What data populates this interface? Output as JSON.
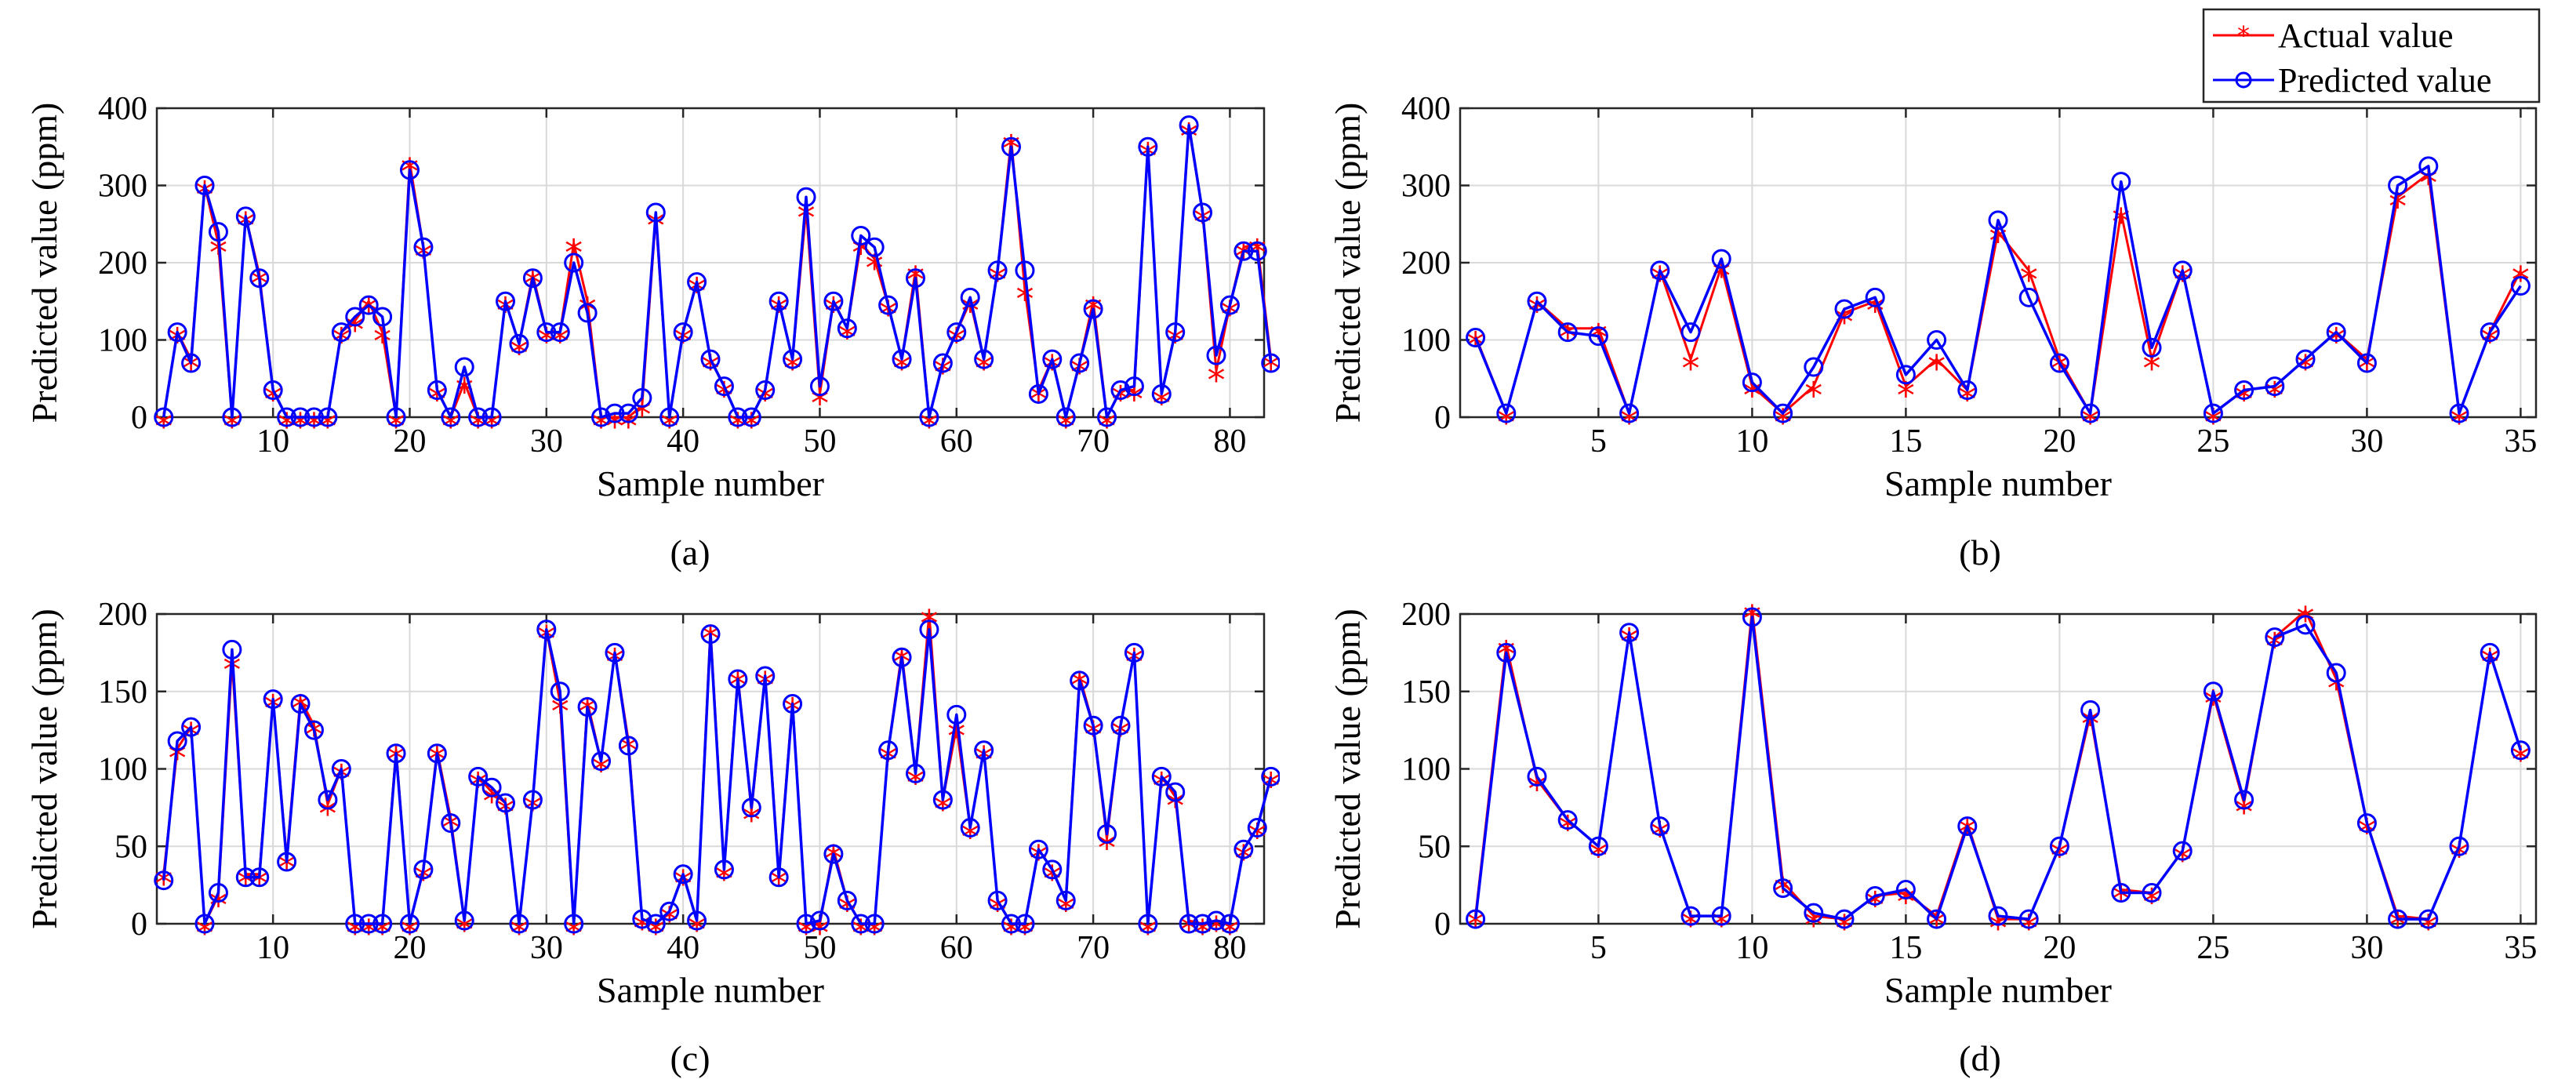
{
  "colors": {
    "actual": "#ff0000",
    "predicted": "#0000ff"
  },
  "legend": {
    "actual_label": "Actual value",
    "predicted_label": "Predicted value"
  },
  "chart_data": [
    {
      "panel": "(a)",
      "type": "line",
      "title": "",
      "xlabel": "Sample number",
      "ylabel": "Predicted value (ppm)",
      "xlim": [
        1.5,
        82.5
      ],
      "ylim": [
        0,
        400
      ],
      "xticks": [
        10,
        20,
        30,
        40,
        50,
        60,
        70,
        80
      ],
      "yticks": [
        0,
        100,
        200,
        300,
        400
      ],
      "grid": true,
      "legend_location": "",
      "x_start": 2,
      "series": [
        {
          "name": "Actual value",
          "values": [
            0,
            110,
            75,
            300,
            225,
            0,
            260,
            185,
            35,
            0,
            0,
            0,
            0,
            110,
            125,
            150,
            110,
            0,
            330,
            220,
            35,
            0,
            45,
            0,
            0,
            150,
            95,
            185,
            110,
            110,
            225,
            150,
            0,
            0,
            0,
            15,
            260,
            0,
            110,
            175,
            75,
            40,
            0,
            0,
            35,
            150,
            75,
            270,
            30,
            150,
            115,
            225,
            205,
            145,
            75,
            190,
            0,
            70,
            110,
            150,
            75,
            190,
            360,
            165,
            35,
            75,
            0,
            70,
            150,
            0,
            35,
            35,
            350,
            30,
            110,
            375,
            265,
            60,
            145,
            220,
            225,
            75
          ]
        },
        {
          "name": "Predicted value",
          "values": [
            0,
            110,
            70,
            300,
            240,
            0,
            260,
            180,
            35,
            0,
            0,
            0,
            0,
            110,
            130,
            145,
            130,
            0,
            320,
            220,
            35,
            0,
            65,
            0,
            0,
            150,
            95,
            180,
            110,
            110,
            200,
            135,
            0,
            5,
            5,
            25,
            265,
            0,
            110,
            175,
            75,
            40,
            0,
            0,
            35,
            150,
            75,
            285,
            40,
            150,
            115,
            235,
            220,
            145,
            75,
            180,
            0,
            70,
            110,
            155,
            75,
            190,
            350,
            190,
            30,
            75,
            0,
            70,
            140,
            0,
            35,
            40,
            350,
            30,
            110,
            378,
            265,
            80,
            145,
            215,
            215,
            70
          ]
        }
      ]
    },
    {
      "panel": "(b)",
      "type": "line",
      "title": "",
      "xlabel": "Sample number",
      "ylabel": "Predicted value (ppm)",
      "xlim": [
        0.5,
        35.5
      ],
      "ylim": [
        0,
        400
      ],
      "xticks": [
        5,
        10,
        15,
        20,
        25,
        30,
        35
      ],
      "yticks": [
        0,
        100,
        200,
        300,
        400
      ],
      "grid": true,
      "legend_location": "top-right",
      "x_start": 1,
      "series": [
        {
          "name": "Actual value",
          "values": [
            105,
            5,
            150,
            115,
            115,
            5,
            190,
            75,
            195,
            40,
            5,
            40,
            135,
            150,
            40,
            75,
            35,
            240,
            190,
            75,
            5,
            265,
            75,
            190,
            5,
            35,
            40,
            75,
            110,
            75,
            285,
            315,
            5,
            110,
            190
          ]
        },
        {
          "name": "Predicted value",
          "values": [
            103,
            5,
            150,
            110,
            105,
            5,
            190,
            110,
            205,
            45,
            5,
            65,
            140,
            155,
            55,
            100,
            35,
            255,
            155,
            70,
            5,
            305,
            90,
            190,
            5,
            35,
            40,
            75,
            110,
            70,
            300,
            325,
            5,
            110,
            170
          ]
        }
      ]
    },
    {
      "panel": "(c)",
      "type": "line",
      "title": "",
      "xlabel": "Sample number",
      "ylabel": "Predicted value (ppm)",
      "xlim": [
        1.5,
        82.5
      ],
      "ylim": [
        0,
        200
      ],
      "xticks": [
        10,
        20,
        30,
        40,
        50,
        60,
        70,
        80
      ],
      "yticks": [
        0,
        50,
        100,
        150,
        200
      ],
      "grid": true,
      "legend_location": "",
      "x_start": 2,
      "series": [
        {
          "name": "Actual value",
          "values": [
            32,
            113,
            127,
            0,
            18,
            170,
            32,
            32,
            145,
            42,
            145,
            128,
            77,
            100,
            0,
            0,
            0,
            112,
            0,
            35,
            112,
            68,
            2,
            95,
            85,
            78,
            0,
            80,
            190,
            143,
            0,
            143,
            105,
            175,
            118,
            3,
            0,
            8,
            32,
            2,
            190,
            35,
            160,
            73,
            160,
            32,
            143,
            0,
            0,
            48,
            15,
            0,
            0,
            112,
            175,
            97,
            200,
            80,
            127,
            62,
            112,
            15,
            0,
            0,
            48,
            35,
            15,
            160,
            128,
            55,
            128,
            175,
            0,
            95,
            82,
            2,
            0,
            2,
            0,
            48,
            62,
            95
          ]
        },
        {
          "name": "Predicted value",
          "values": [
            28,
            118,
            127,
            0,
            20,
            177,
            30,
            30,
            145,
            40,
            142,
            125,
            80,
            100,
            0,
            0,
            0,
            110,
            0,
            35,
            110,
            65,
            2,
            95,
            88,
            78,
            0,
            80,
            190,
            150,
            0,
            140,
            105,
            175,
            115,
            3,
            0,
            8,
            32,
            2,
            187,
            35,
            158,
            75,
            160,
            30,
            142,
            0,
            2,
            45,
            15,
            0,
            0,
            112,
            172,
            97,
            190,
            80,
            135,
            62,
            112,
            15,
            0,
            0,
            48,
            35,
            15,
            157,
            128,
            58,
            128,
            175,
            0,
            95,
            85,
            0,
            0,
            2,
            0,
            48,
            62,
            95
          ]
        }
      ]
    },
    {
      "panel": "(d)",
      "type": "line",
      "title": "",
      "xlabel": "Sample number",
      "ylabel": "Predicted value (ppm)",
      "xlim": [
        0.5,
        35.5
      ],
      "ylim": [
        0,
        200
      ],
      "xticks": [
        5,
        10,
        15,
        20,
        25,
        30,
        35
      ],
      "yticks": [
        0,
        50,
        100,
        150,
        200
      ],
      "grid": true,
      "legend_location": "",
      "x_start": 1,
      "series": [
        {
          "name": "Actual value",
          "values": [
            5,
            180,
            93,
            67,
            50,
            188,
            63,
            5,
            5,
            203,
            27,
            5,
            3,
            18,
            20,
            5,
            65,
            3,
            3,
            50,
            135,
            22,
            20,
            47,
            148,
            78,
            185,
            202,
            158,
            65,
            5,
            3,
            50,
            175,
            112
          ]
        },
        {
          "name": "Predicted value",
          "values": [
            3,
            175,
            95,
            67,
            50,
            188,
            63,
            5,
            5,
            198,
            23,
            7,
            3,
            18,
            22,
            3,
            63,
            5,
            3,
            50,
            138,
            20,
            20,
            47,
            150,
            80,
            185,
            193,
            162,
            65,
            3,
            3,
            50,
            175,
            112
          ]
        }
      ]
    }
  ],
  "captions": [
    "(a)",
    "(b)",
    "(c)",
    "(d)"
  ]
}
